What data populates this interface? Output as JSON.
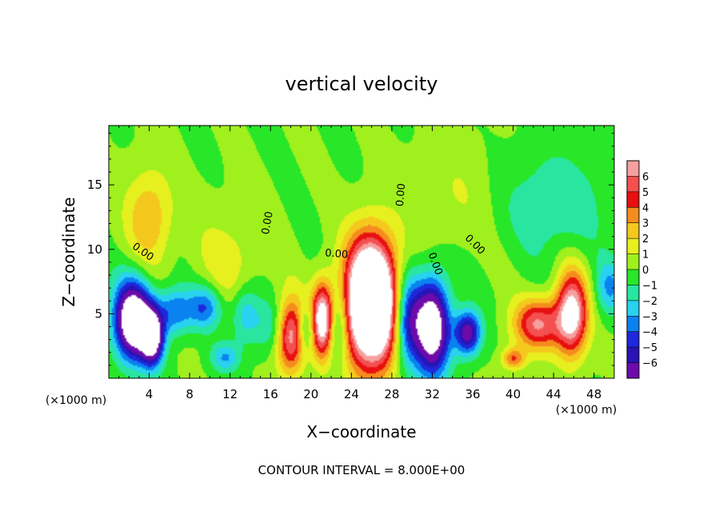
{
  "chart_data": {
    "type": "heatmap",
    "title": "vertical velocity",
    "xlabel": "X−coordinate",
    "ylabel": "Z−coordinate",
    "x_unit_left": "(×1000 m)",
    "x_unit_right": "(×1000 m)",
    "footer": "CONTOUR INTERVAL = 8.000E+00",
    "xlim": [
      0,
      50
    ],
    "ylim": [
      0,
      19.6
    ],
    "x_ticks": [
      4,
      8,
      12,
      16,
      20,
      24,
      28,
      32,
      36,
      40,
      44,
      48
    ],
    "x_tick_labels": [
      "4",
      "8",
      "12",
      "16",
      "20",
      "24",
      "28",
      "32",
      "36",
      "40",
      "44",
      "48"
    ],
    "y_ticks": [
      5,
      10,
      15
    ],
    "y_tick_labels": [
      "5",
      "10",
      "15"
    ],
    "contour_labels": [
      {
        "text": "0.00",
        "x": 3.2,
        "y": 9.6,
        "angle": 35
      },
      {
        "text": "0.00",
        "x": 16.0,
        "y": 12.0,
        "angle": -80
      },
      {
        "text": "0.00",
        "x": 22.5,
        "y": 9.4,
        "angle": 5
      },
      {
        "text": "0.00",
        "x": 29.2,
        "y": 14.2,
        "angle": -85
      },
      {
        "text": "0.00",
        "x": 32.0,
        "y": 8.8,
        "angle": 70
      },
      {
        "text": "0.00",
        "x": 36.0,
        "y": 10.2,
        "angle": 45
      }
    ],
    "colorbar": {
      "levels": [
        "6",
        "5",
        "4",
        "3",
        "2",
        "1",
        "0",
        "−1",
        "−2",
        "−3",
        "−4",
        "−5",
        "−6"
      ],
      "colors": [
        "#f6a0a0",
        "#f55050",
        "#e81010",
        "#f58c1e",
        "#f5c81e",
        "#e6f01e",
        "#a0f01e",
        "#28e628",
        "#28e6a0",
        "#28d2f0",
        "#0a82f0",
        "#1e28dc",
        "#2814b4",
        "#6e0aaa"
      ]
    },
    "features": [
      {
        "x": 2.4,
        "y": 4.5,
        "sx": 1.3,
        "sy": 2.1,
        "v": -11
      },
      {
        "x": 4.3,
        "y": 3.2,
        "sx": 0.8,
        "sy": 1.5,
        "v": -9
      },
      {
        "x": 6.5,
        "y": 5.2,
        "sx": 1.2,
        "sy": 1.3,
        "v": -4
      },
      {
        "x": 9.5,
        "y": 5.5,
        "sx": 1.2,
        "sy": 1.2,
        "v": -4
      },
      {
        "x": 11.5,
        "y": 1.6,
        "sx": 1.0,
        "sy": 0.8,
        "v": -3
      },
      {
        "x": 13.5,
        "y": 5.0,
        "sx": 1.0,
        "sy": 1.6,
        "v": -3
      },
      {
        "x": 16.0,
        "y": 4.0,
        "sx": 1.2,
        "sy": 1.5,
        "v": -2
      },
      {
        "x": 18.0,
        "y": 3.3,
        "sx": 1.0,
        "sy": 2.0,
        "v": 7
      },
      {
        "x": 19.5,
        "y": 3.8,
        "sx": 0.6,
        "sy": 1.2,
        "v": -3
      },
      {
        "x": 21.2,
        "y": 4.5,
        "sx": 0.8,
        "sy": 2.0,
        "v": 9
      },
      {
        "x": 22.5,
        "y": 4.0,
        "sx": 0.8,
        "sy": 2.0,
        "v": -4
      },
      {
        "x": 26.0,
        "y": 5.5,
        "sx": 1.9,
        "sy": 3.3,
        "v": 14
      },
      {
        "x": 29.5,
        "y": 4.5,
        "sx": 1.0,
        "sy": 2.6,
        "v": -6
      },
      {
        "x": 32.0,
        "y": 4.0,
        "sx": 1.2,
        "sy": 2.6,
        "v": -10
      },
      {
        "x": 35.5,
        "y": 3.5,
        "sx": 0.9,
        "sy": 1.2,
        "v": -7
      },
      {
        "x": 42.5,
        "y": 4.2,
        "sx": 1.7,
        "sy": 1.4,
        "v": 6
      },
      {
        "x": 45.8,
        "y": 5.0,
        "sx": 1.1,
        "sy": 2.3,
        "v": 8
      },
      {
        "x": 40.0,
        "y": 1.5,
        "sx": 0.8,
        "sy": 0.6,
        "v": 4
      },
      {
        "x": 49.5,
        "y": 7.0,
        "sx": 1.0,
        "sy": 1.5,
        "v": -3
      },
      {
        "x": 4.0,
        "y": 12.5,
        "sx": 1.6,
        "sy": 2.6,
        "v": 3
      },
      {
        "x": 44.0,
        "y": 13.5,
        "sx": 3.5,
        "sy": 2.8,
        "v": -2
      },
      {
        "x": 26.0,
        "y": 9.0,
        "sx": 1.6,
        "sy": 2.5,
        "v": 2
      },
      {
        "x": 12.0,
        "y": 9.0,
        "sx": 2.5,
        "sy": 3.0,
        "v": 1.5
      },
      {
        "x": 34.0,
        "y": 14.0,
        "sx": 3.0,
        "sy": 3.0,
        "v": 1
      }
    ]
  }
}
